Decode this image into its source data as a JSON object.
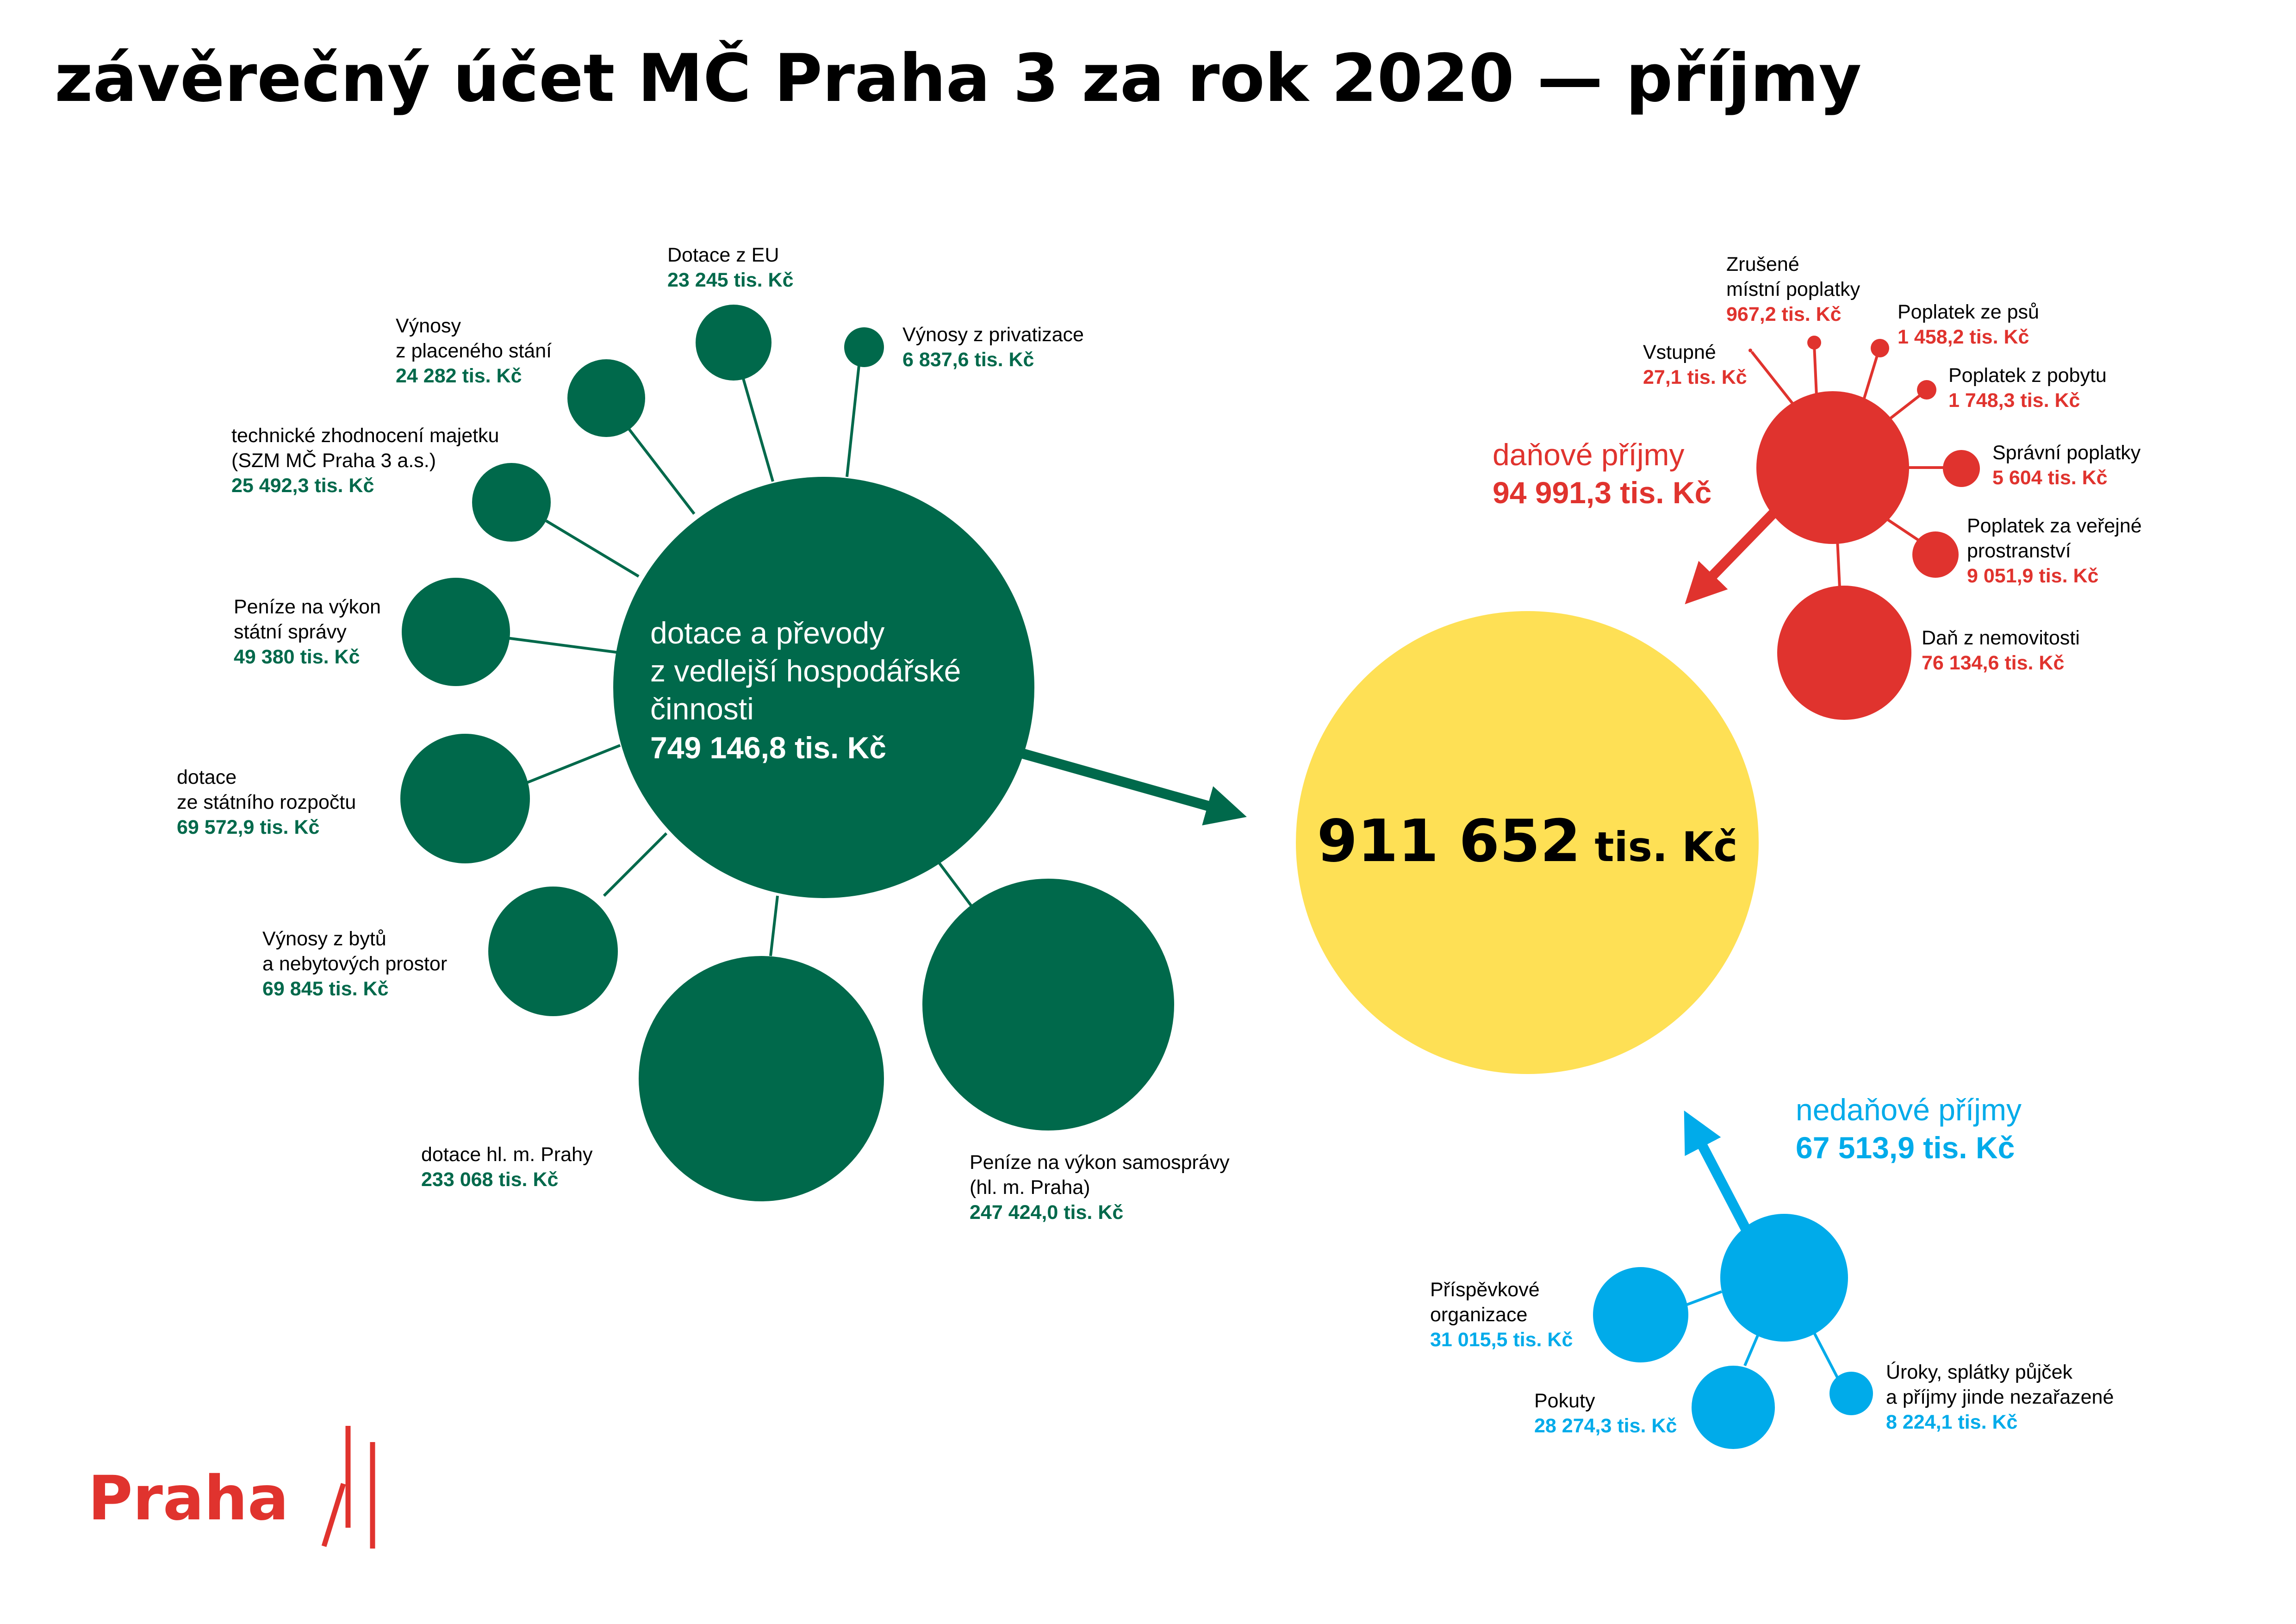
{
  "title": "závěrečný účet MČ Praha 3 za rok 2020 — příjmy",
  "colors": {
    "green": "#00694b",
    "red": "#e0332e",
    "blue": "#00abea",
    "yellow": "#fee055"
  },
  "total": {
    "value": "911 652",
    "unit": "tis. Kč"
  },
  "groups": {
    "transfers": {
      "name_lines": [
        "dotace a převody",
        "z vedlejší hospodářské",
        "činnosti"
      ],
      "value": "749 146,8 tis. Kč",
      "items": [
        {
          "name_lines": [
            "Dotace z EU"
          ],
          "value": "23 245 tis. Kč"
        },
        {
          "name_lines": [
            "Výnosy z privatizace"
          ],
          "value": "6 837,6 tis. Kč"
        },
        {
          "name_lines": [
            "Výnosy",
            "z placeného stání"
          ],
          "value": "24 282 tis. Kč"
        },
        {
          "name_lines": [
            "technické zhodnocení majetku",
            "(SZM MČ Praha 3 a.s.)"
          ],
          "value": "25 492,3 tis. Kč"
        },
        {
          "name_lines": [
            "Peníze na výkon",
            "státní správy"
          ],
          "value": "49 380 tis. Kč"
        },
        {
          "name_lines": [
            "dotace",
            "ze státního rozpočtu"
          ],
          "value": "69 572,9 tis. Kč"
        },
        {
          "name_lines": [
            "Výnosy z bytů",
            "a nebytových prostor"
          ],
          "value": "69 845 tis. Kč"
        },
        {
          "name_lines": [
            "dotace hl. m. Prahy"
          ],
          "value": "233 068 tis. Kč"
        },
        {
          "name_lines": [
            "Peníze na výkon samosprávy",
            "(hl. m. Praha)"
          ],
          "value": "247 424,0 tis. Kč"
        }
      ]
    },
    "tax": {
      "name": "daňové příjmy",
      "value": "94 991,3 tis. Kč",
      "items": [
        {
          "name_lines": [
            "Zrušené",
            "místní poplatky"
          ],
          "value": "967,2 tis. Kč"
        },
        {
          "name_lines": [
            "Vstupné"
          ],
          "value": "27,1 tis. Kč"
        },
        {
          "name_lines": [
            "Poplatek ze psů"
          ],
          "value": "1 458,2 tis. Kč"
        },
        {
          "name_lines": [
            "Poplatek z pobytu"
          ],
          "value": "1 748,3 tis. Kč"
        },
        {
          "name_lines": [
            "Správní poplatky"
          ],
          "value": "5 604 tis. Kč"
        },
        {
          "name_lines": [
            "Poplatek za veřejné",
            "prostranství"
          ],
          "value": "9 051,9 tis. Kč"
        },
        {
          "name_lines": [
            "Daň z nemovitosti"
          ],
          "value": "76 134,6 tis. Kč"
        }
      ]
    },
    "nontax": {
      "name": "nedaňové příjmy",
      "value": "67 513,9 tis. Kč",
      "items": [
        {
          "name_lines": [
            "Příspěvkové",
            "organizace"
          ],
          "value": "31 015,5 tis. Kč"
        },
        {
          "name_lines": [
            "Pokuty"
          ],
          "value": "28 274,3 tis. Kč"
        },
        {
          "name_lines": [
            "Úroky, splátky půjček",
            "a příjmy jinde nezařazené"
          ],
          "value": "8 224,1 tis. Kč"
        }
      ]
    }
  },
  "logo": {
    "text": "Praha"
  }
}
